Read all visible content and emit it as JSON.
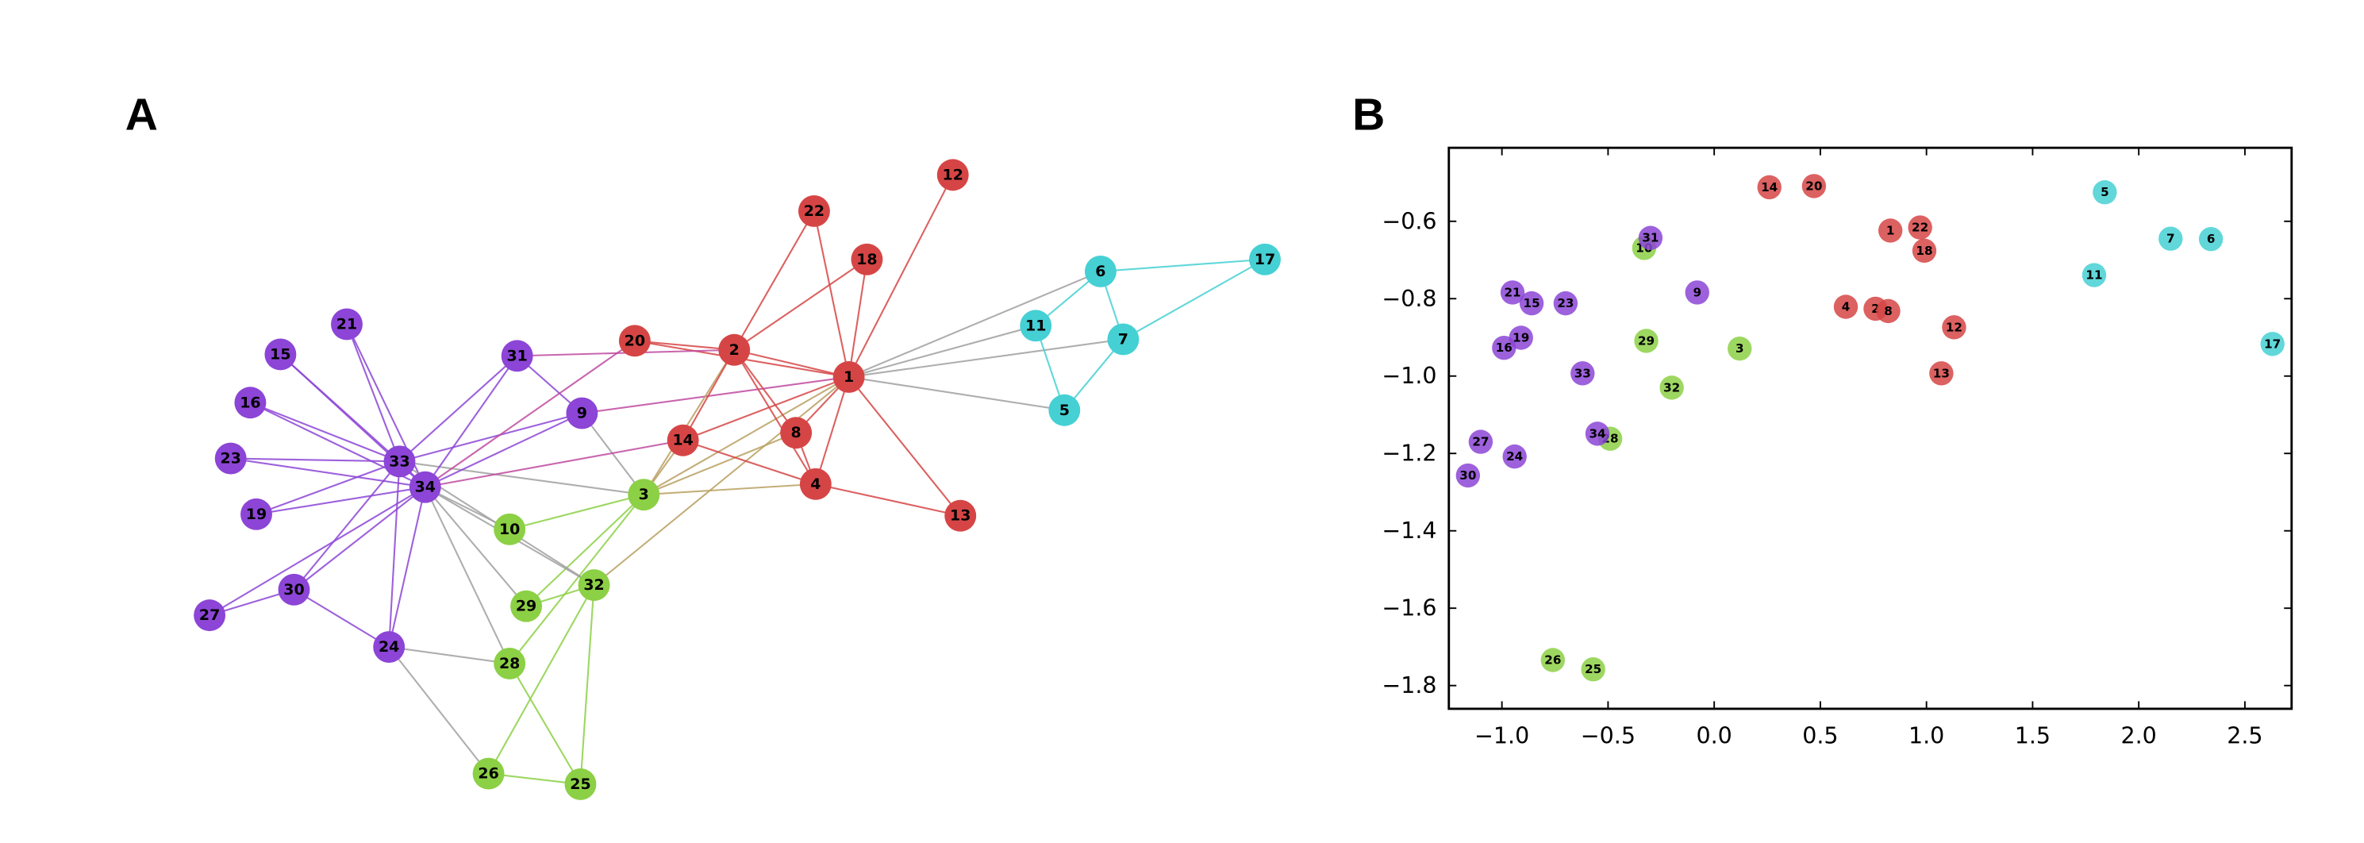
{
  "panels": {
    "a_label": "A",
    "b_label": "B"
  },
  "colors": {
    "red": "#d64545",
    "cyan": "#45d0d4",
    "green": "#8cd045",
    "purple": "#8c45d6",
    "gray": "#a0a0a0"
  },
  "groups": {
    "red": [
      1,
      2,
      4,
      8,
      12,
      13,
      14,
      18,
      20,
      22
    ],
    "cyan": [
      5,
      6,
      7,
      11,
      17
    ],
    "green": [
      3,
      10,
      25,
      26,
      28,
      29,
      32
    ],
    "purple": [
      9,
      15,
      16,
      19,
      21,
      23,
      24,
      27,
      30,
      31,
      33,
      34
    ]
  },
  "graph": {
    "nodes": [
      "1",
      "2",
      "3",
      "4",
      "5",
      "6",
      "7",
      "8",
      "9",
      "10",
      "11",
      "12",
      "13",
      "14",
      "15",
      "16",
      "17",
      "18",
      "19",
      "20",
      "21",
      "22",
      "23",
      "24",
      "25",
      "26",
      "27",
      "28",
      "29",
      "30",
      "31",
      "32",
      "33",
      "34"
    ],
    "edges": [
      [
        1,
        2
      ],
      [
        1,
        3
      ],
      [
        1,
        4
      ],
      [
        1,
        5
      ],
      [
        1,
        6
      ],
      [
        1,
        7
      ],
      [
        1,
        8
      ],
      [
        1,
        9
      ],
      [
        1,
        11
      ],
      [
        1,
        12
      ],
      [
        1,
        13
      ],
      [
        1,
        14
      ],
      [
        1,
        18
      ],
      [
        1,
        20
      ],
      [
        1,
        22
      ],
      [
        1,
        32
      ],
      [
        2,
        3
      ],
      [
        2,
        4
      ],
      [
        2,
        8
      ],
      [
        2,
        14
      ],
      [
        2,
        18
      ],
      [
        2,
        20
      ],
      [
        2,
        22
      ],
      [
        2,
        31
      ],
      [
        3,
        4
      ],
      [
        3,
        8
      ],
      [
        3,
        9
      ],
      [
        3,
        10
      ],
      [
        3,
        14
      ],
      [
        3,
        28
      ],
      [
        3,
        29
      ],
      [
        3,
        33
      ],
      [
        4,
        8
      ],
      [
        4,
        13
      ],
      [
        4,
        14
      ],
      [
        5,
        7
      ],
      [
        5,
        11
      ],
      [
        6,
        7
      ],
      [
        6,
        11
      ],
      [
        6,
        17
      ],
      [
        7,
        17
      ],
      [
        9,
        31
      ],
      [
        9,
        33
      ],
      [
        9,
        34
      ],
      [
        10,
        34
      ],
      [
        14,
        34
      ],
      [
        15,
        33
      ],
      [
        15,
        34
      ],
      [
        16,
        33
      ],
      [
        16,
        34
      ],
      [
        19,
        33
      ],
      [
        19,
        34
      ],
      [
        20,
        34
      ],
      [
        21,
        33
      ],
      [
        21,
        34
      ],
      [
        23,
        33
      ],
      [
        23,
        34
      ],
      [
        24,
        26
      ],
      [
        24,
        28
      ],
      [
        24,
        30
      ],
      [
        24,
        33
      ],
      [
        24,
        34
      ],
      [
        25,
        26
      ],
      [
        25,
        28
      ],
      [
        25,
        32
      ],
      [
        26,
        32
      ],
      [
        27,
        30
      ],
      [
        27,
        34
      ],
      [
        28,
        34
      ],
      [
        29,
        32
      ],
      [
        29,
        34
      ],
      [
        30,
        33
      ],
      [
        30,
        34
      ],
      [
        31,
        33
      ],
      [
        31,
        34
      ],
      [
        32,
        33
      ],
      [
        32,
        34
      ],
      [
        33,
        34
      ]
    ]
  },
  "chart_data": {
    "type": "scatter",
    "title": "",
    "xlabel": "",
    "ylabel": "",
    "xlim": [
      -1.25,
      2.72
    ],
    "ylim": [
      -1.86,
      -0.41
    ],
    "grid": false,
    "xticks": [
      -1.0,
      -0.5,
      0.0,
      0.5,
      1.0,
      1.5,
      2.0,
      2.5
    ],
    "xtick_labels": [
      "−1.0",
      "−0.5",
      "0.0",
      "0.5",
      "1.0",
      "1.5",
      "2.0",
      "2.5"
    ],
    "yticks": [
      -0.6,
      -0.8,
      -1.0,
      -1.2,
      -1.4,
      -1.6,
      -1.8
    ],
    "ytick_labels": [
      "−0.6",
      "−0.8",
      "−1.0",
      "−1.2",
      "−1.4",
      "−1.6",
      "−1.8"
    ],
    "points": [
      {
        "label": "1",
        "x": 0.83,
        "y": -0.624
      },
      {
        "label": "2",
        "x": 0.76,
        "y": -0.826
      },
      {
        "label": "3",
        "x": 0.12,
        "y": -0.929
      },
      {
        "label": "4",
        "x": 0.62,
        "y": -0.821
      },
      {
        "label": "5",
        "x": 1.84,
        "y": -0.525
      },
      {
        "label": "6",
        "x": 2.34,
        "y": -0.646
      },
      {
        "label": "7",
        "x": 2.15,
        "y": -0.645
      },
      {
        "label": "8",
        "x": 0.82,
        "y": -0.832
      },
      {
        "label": "9",
        "x": -0.08,
        "y": -0.784
      },
      {
        "label": "10",
        "x": -0.33,
        "y": -0.669
      },
      {
        "label": "11",
        "x": 1.79,
        "y": -0.739
      },
      {
        "label": "12",
        "x": 1.13,
        "y": -0.874
      },
      {
        "label": "13",
        "x": 1.07,
        "y": -0.993
      },
      {
        "label": "14",
        "x": 0.26,
        "y": -0.512
      },
      {
        "label": "15",
        "x": -0.86,
        "y": -0.812
      },
      {
        "label": "16",
        "x": -0.99,
        "y": -0.927
      },
      {
        "label": "17",
        "x": 2.63,
        "y": -0.917
      },
      {
        "label": "18",
        "x": 0.99,
        "y": -0.676
      },
      {
        "label": "19",
        "x": -0.91,
        "y": -0.901
      },
      {
        "label": "20",
        "x": 0.47,
        "y": -0.509
      },
      {
        "label": "21",
        "x": -0.95,
        "y": -0.784
      },
      {
        "label": "22",
        "x": 0.97,
        "y": -0.616
      },
      {
        "label": "23",
        "x": -0.7,
        "y": -0.812
      },
      {
        "label": "24",
        "x": -0.94,
        "y": -1.208
      },
      {
        "label": "25",
        "x": -0.57,
        "y": -1.758
      },
      {
        "label": "26",
        "x": -0.76,
        "y": -1.734
      },
      {
        "label": "27",
        "x": -1.1,
        "y": -1.17
      },
      {
        "label": "28",
        "x": -0.49,
        "y": -1.162
      },
      {
        "label": "29",
        "x": -0.32,
        "y": -0.909
      },
      {
        "label": "30",
        "x": -1.16,
        "y": -1.257
      },
      {
        "label": "31",
        "x": -0.3,
        "y": -0.643
      },
      {
        "label": "32",
        "x": -0.2,
        "y": -1.03
      },
      {
        "label": "33",
        "x": -0.62,
        "y": -0.993
      },
      {
        "label": "34",
        "x": -0.55,
        "y": -1.149
      }
    ]
  }
}
